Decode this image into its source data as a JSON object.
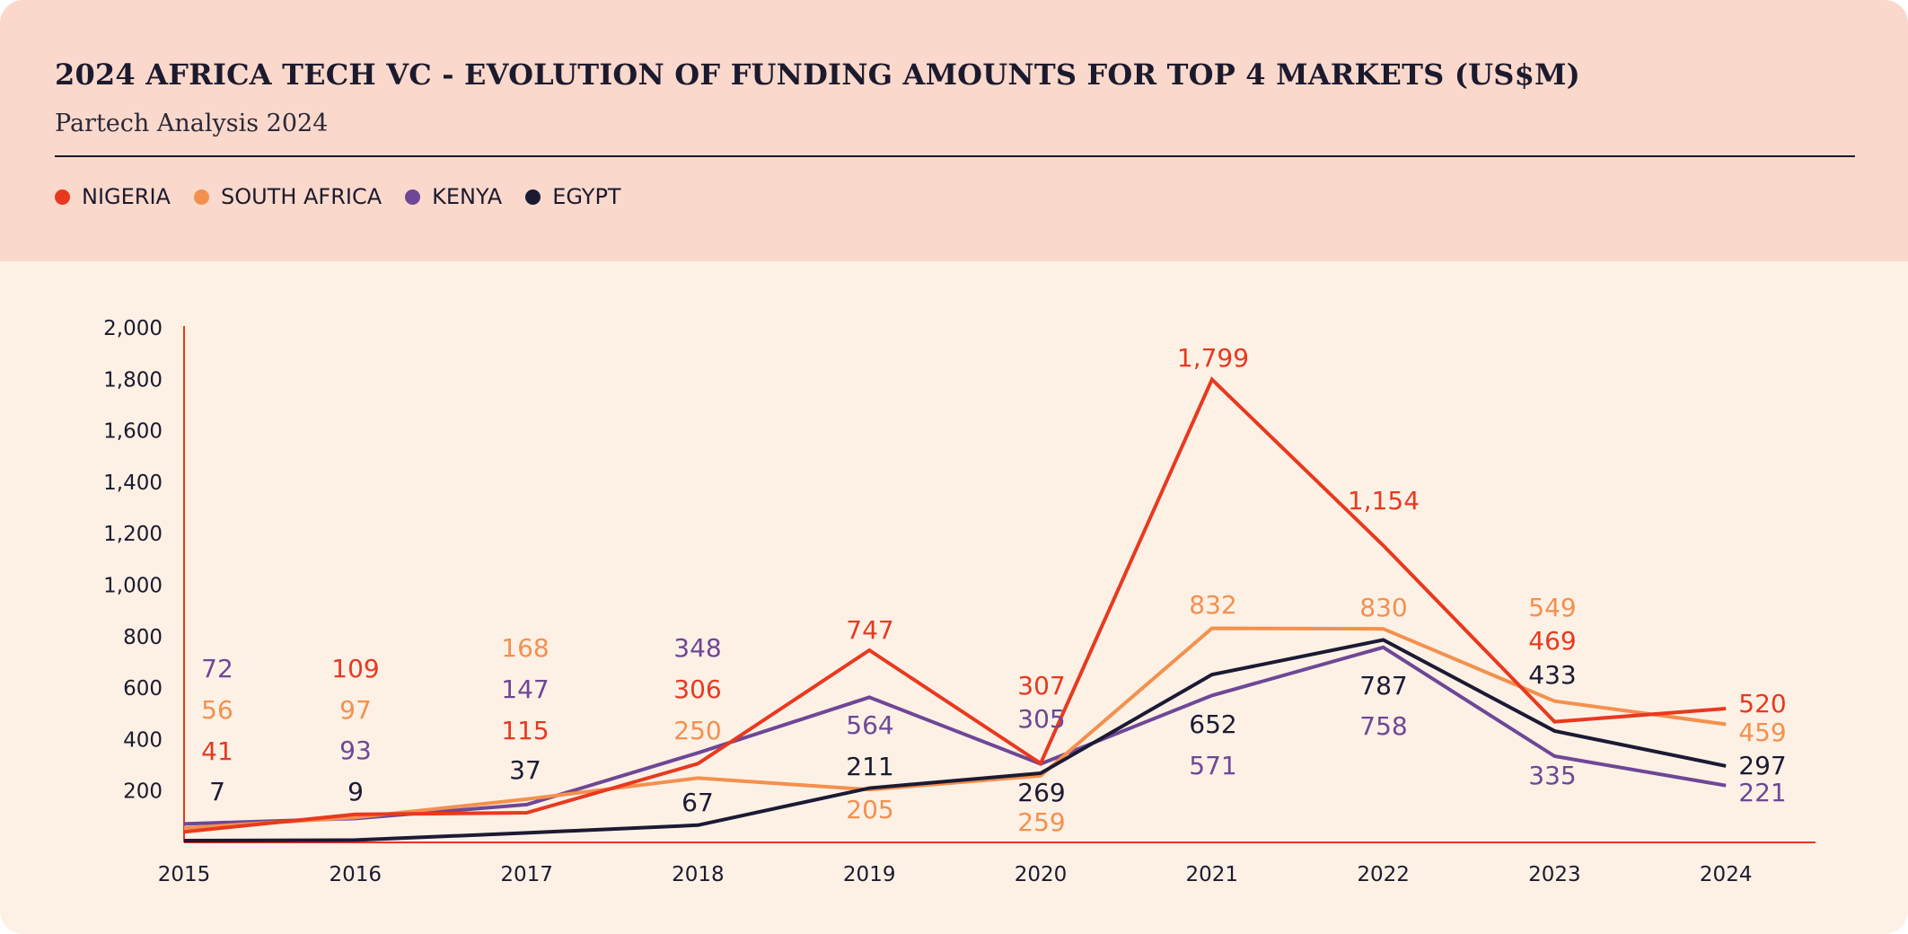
{
  "header": {
    "title": "2024 AFRICA TECH VC - EVOLUTION OF FUNDING AMOUNTS FOR TOP 4 MARKETS (US$M)",
    "subtitle": "Partech Analysis 2024"
  },
  "chart_data": {
    "type": "line",
    "title": "2024 AFRICA TECH VC - EVOLUTION OF FUNDING AMOUNTS FOR TOP 4 MARKETS (US$M)",
    "subtitle": "Partech Analysis 2024",
    "xlabel": "",
    "ylabel": "",
    "x": [
      "2015",
      "2016",
      "2017",
      "2018",
      "2019",
      "2020",
      "2021",
      "2022",
      "2023",
      "2024"
    ],
    "ylim": [
      0,
      2000
    ],
    "yticks": [
      200,
      400,
      600,
      800,
      1000,
      1200,
      1400,
      1600,
      1800,
      2000
    ],
    "ytick_labels": [
      "200",
      "400",
      "600",
      "800",
      "1,000",
      "1,200",
      "1,400",
      "1,600",
      "1,800",
      "2,000"
    ],
    "grid": false,
    "legend_position": "top-left",
    "series": [
      {
        "name": "NIGERIA",
        "color": "#e8391f",
        "values": [
          41,
          109,
          115,
          306,
          747,
          307,
          1799,
          1154,
          469,
          520
        ],
        "labels": [
          "41",
          "109",
          "115",
          "306",
          "747",
          "307",
          "1,799",
          "1,154",
          "469",
          "520"
        ]
      },
      {
        "name": "SOUTH AFRICA",
        "color": "#f4904d",
        "values": [
          56,
          97,
          168,
          250,
          205,
          259,
          832,
          830,
          549,
          459
        ],
        "labels": [
          "56",
          "97",
          "168",
          "250",
          "205",
          "259",
          "832",
          "830",
          "549",
          "459"
        ]
      },
      {
        "name": "KENYA",
        "color": "#6e4796",
        "values": [
          72,
          93,
          147,
          348,
          564,
          305,
          571,
          758,
          335,
          221
        ],
        "labels": [
          "72",
          "93",
          "147",
          "348",
          "564",
          "305",
          "571",
          "758",
          "335",
          "221"
        ]
      },
      {
        "name": "EGYPT",
        "color": "#1c1a33",
        "values": [
          7,
          9,
          37,
          67,
          211,
          269,
          652,
          787,
          433,
          297
        ],
        "labels": [
          "7",
          "9",
          "37",
          "67",
          "211",
          "269",
          "652",
          "787",
          "433",
          "297"
        ]
      }
    ],
    "axis_color": "#e8391f"
  },
  "colors": {
    "header_bg": "#fad9cc",
    "body_bg": "#fdf1e6"
  }
}
